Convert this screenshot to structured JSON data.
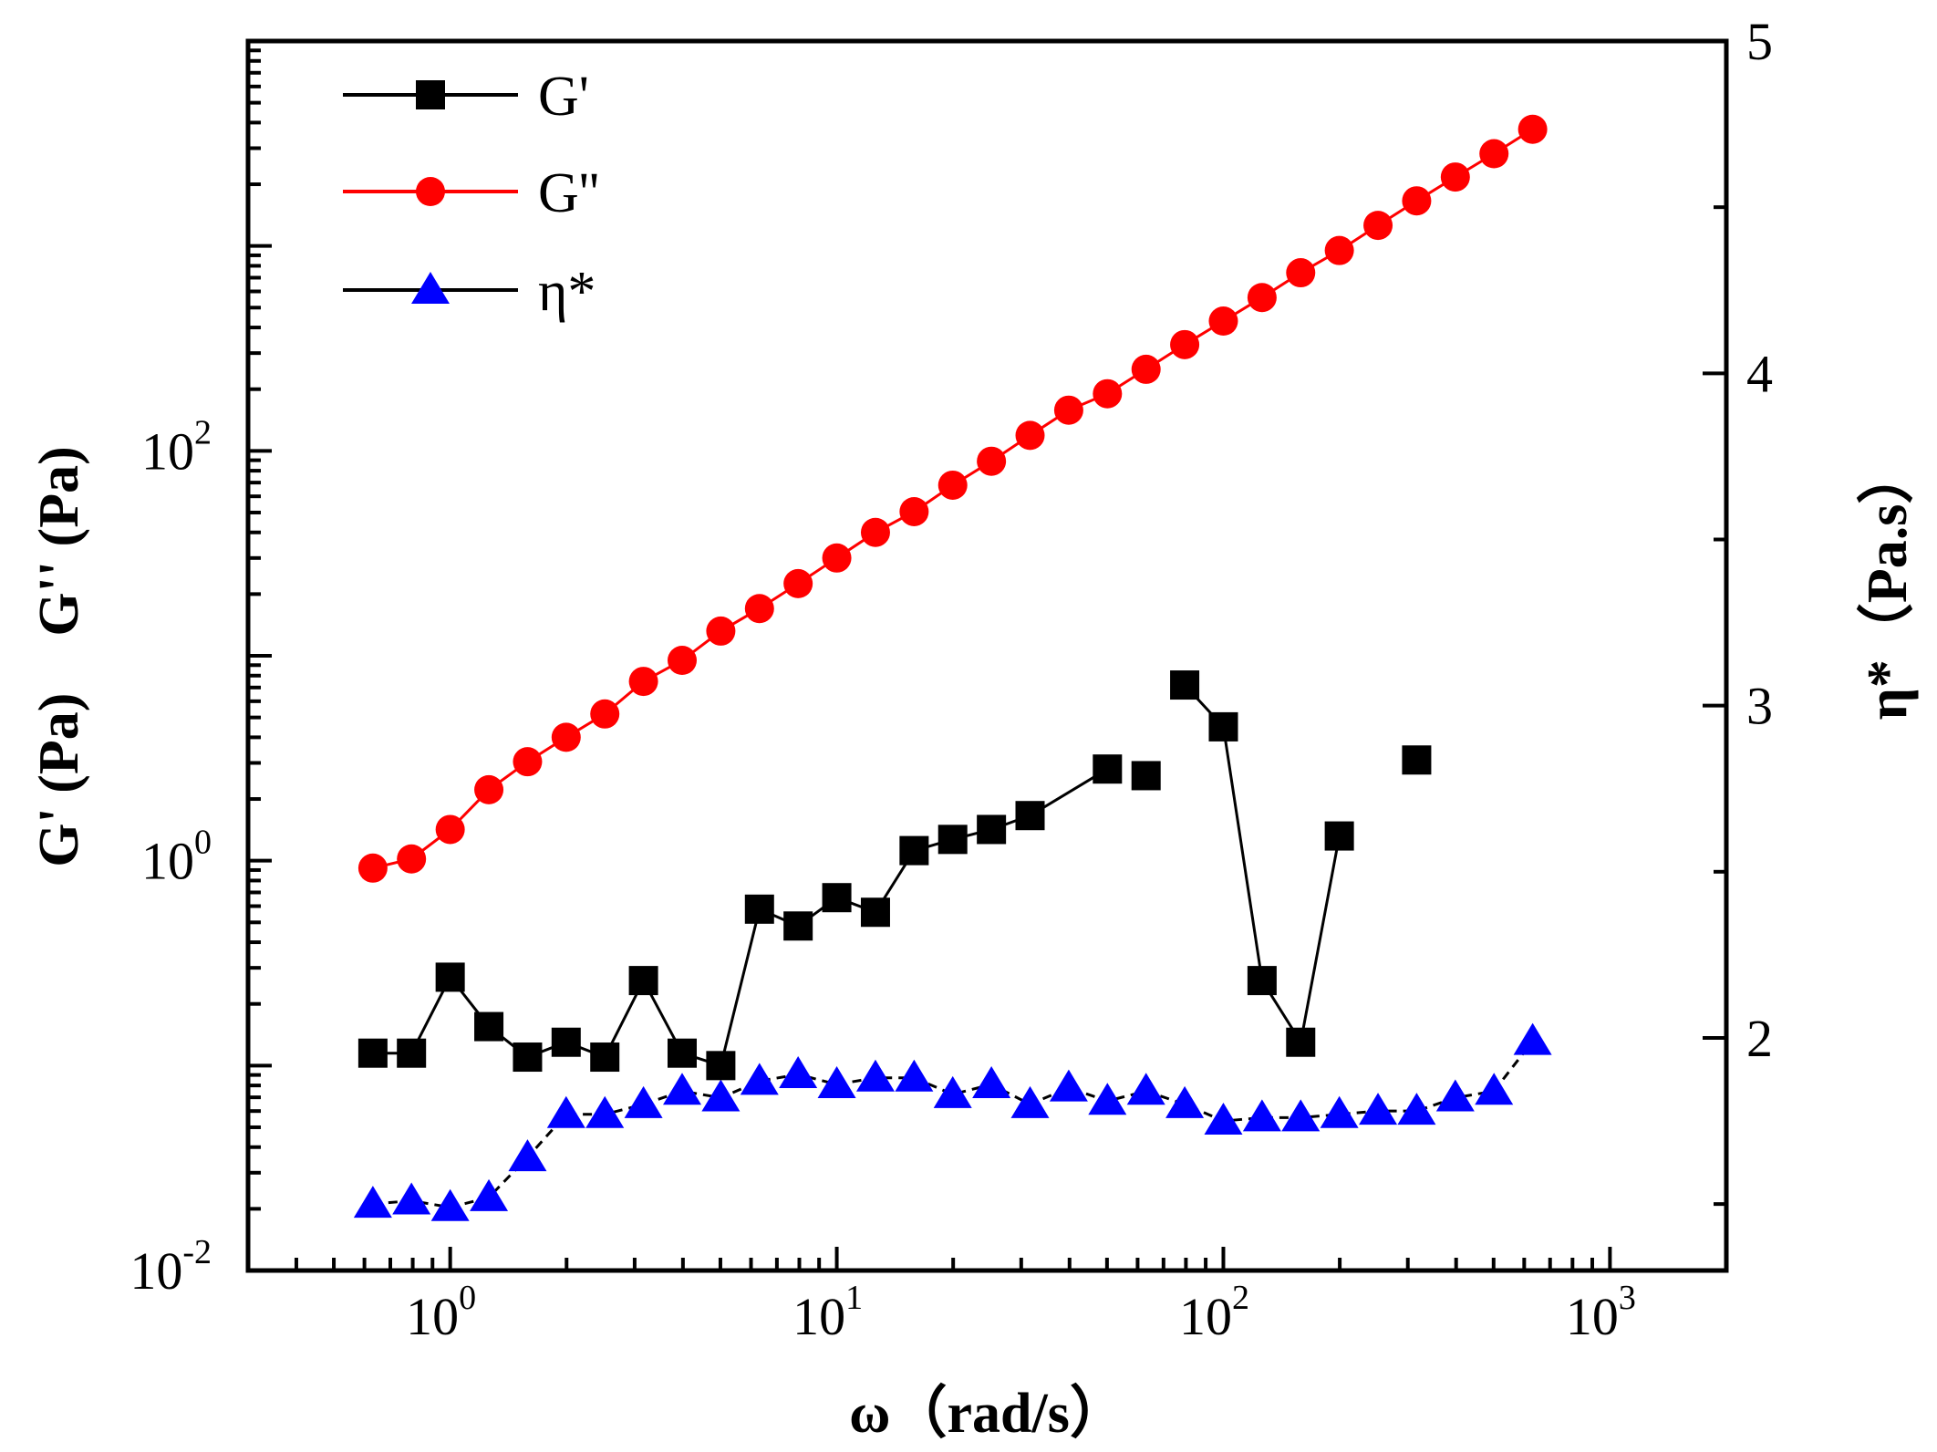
{
  "chart_data": {
    "type": "scatter",
    "xlabel": "ω（rad/s）",
    "ylabel_left": "G' (Pa)    G'' (Pa)",
    "ylabel_right": "η*（Pa.s）",
    "x_scale": "log",
    "xlim": [
      0.3,
      2000
    ],
    "ylim_left": [
      0.01,
      10000
    ],
    "ylim_right": [
      1.3,
      5
    ],
    "y_left_scale": "log",
    "y_right_scale": "linear",
    "legend_position": "top-left",
    "x_ticks": [
      {
        "value": 1,
        "label": "10",
        "exp": "0"
      },
      {
        "value": 10,
        "label": "10",
        "exp": "1"
      },
      {
        "value": 100,
        "label": "10",
        "exp": "2"
      },
      {
        "value": 1000,
        "label": "10",
        "exp": "3"
      }
    ],
    "y_left_ticks": [
      {
        "value": 0.01,
        "label": "10",
        "exp": "-2"
      },
      {
        "value": 1,
        "label": "10",
        "exp": "0"
      },
      {
        "value": 100,
        "label": "10",
        "exp": "2"
      }
    ],
    "y_right_ticks": [
      {
        "value": 2,
        "label": "2"
      },
      {
        "value": 3,
        "label": "3"
      },
      {
        "value": 4,
        "label": "4"
      },
      {
        "value": 5,
        "label": "5"
      }
    ],
    "series": [
      {
        "name": "G'",
        "axis": "left",
        "marker": "square",
        "color": "#000000",
        "line_color": "#000000",
        "segments": [
          [
            0,
            18
          ],
          [
            20,
            24
          ]
        ],
        "x": [
          0.631,
          0.794,
          1.0,
          1.259,
          1.585,
          1.995,
          2.512,
          3.162,
          3.981,
          5.012,
          6.31,
          7.943,
          10.0,
          12.59,
          15.85,
          19.95,
          25.12,
          31.62,
          50.12,
          63.1,
          79.43,
          100.0,
          125.9,
          158.5,
          199.5,
          316.2
        ],
        "y": [
          0.115,
          0.115,
          0.27,
          0.155,
          0.11,
          0.13,
          0.11,
          0.26,
          0.115,
          0.1,
          0.58,
          0.48,
          0.66,
          0.56,
          1.12,
          1.27,
          1.42,
          1.66,
          2.8,
          2.6,
          7.2,
          4.5,
          0.26,
          0.13,
          1.32,
          3.1
        ]
      },
      {
        "name": "G''",
        "axis": "left",
        "marker": "circle",
        "color": "#ff0000",
        "line_color": "#ff0000",
        "x": [
          0.631,
          0.794,
          1.0,
          1.259,
          1.585,
          1.995,
          2.512,
          3.162,
          3.981,
          5.012,
          6.31,
          7.943,
          10.0,
          12.59,
          15.85,
          19.95,
          25.12,
          31.62,
          39.81,
          50.12,
          63.1,
          79.43,
          100.0,
          125.9,
          158.5,
          199.5,
          251.2,
          316.2,
          398.1,
          501.2,
          631.0
        ],
        "y": [
          0.92,
          1.02,
          1.42,
          2.22,
          3.04,
          4.0,
          5.2,
          7.5,
          9.5,
          13.2,
          17.0,
          22.5,
          30.0,
          40.0,
          50.5,
          68.0,
          89.0,
          119.0,
          158.0,
          190.0,
          250.0,
          330.0,
          430.0,
          560.0,
          740.0,
          950.0,
          1260.0,
          1660.0,
          2170.0,
          2820.0,
          3710.0
        ]
      },
      {
        "name": "η*",
        "axis": "right",
        "marker": "triangle",
        "color": "#0000ff",
        "line_color": "#000000",
        "line_style": "dashed",
        "x": [
          0.631,
          0.794,
          1.0,
          1.259,
          1.585,
          1.995,
          2.512,
          3.162,
          3.981,
          5.012,
          6.31,
          7.943,
          10.0,
          12.59,
          15.85,
          19.95,
          25.12,
          31.62,
          39.81,
          50.12,
          63.1,
          79.43,
          100.0,
          125.9,
          158.5,
          199.5,
          251.2,
          316.2,
          398.1,
          501.2,
          631.0
        ],
        "y": [
          1.5,
          1.51,
          1.49,
          1.52,
          1.64,
          1.77,
          1.77,
          1.8,
          1.84,
          1.82,
          1.87,
          1.89,
          1.86,
          1.88,
          1.88,
          1.83,
          1.86,
          1.8,
          1.85,
          1.81,
          1.84,
          1.8,
          1.75,
          1.76,
          1.76,
          1.77,
          1.78,
          1.78,
          1.82,
          1.84,
          1.99
        ]
      }
    ]
  }
}
